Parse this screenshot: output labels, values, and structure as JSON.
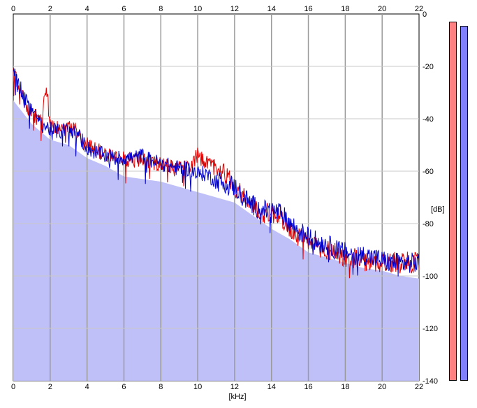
{
  "chart_data": {
    "type": "area",
    "title": "",
    "xlabel": "[kHz]",
    "ylabel": "[dB]",
    "xlim": [
      0,
      22
    ],
    "ylim": [
      -140,
      0
    ],
    "xticks": [
      "0",
      "2",
      "4",
      "6",
      "8",
      "10",
      "12",
      "14",
      "16",
      "18",
      "20",
      "22"
    ],
    "yticks": [
      "0",
      "-20",
      "-40",
      "-60",
      "-80",
      "-100",
      "-120",
      "-140"
    ],
    "grid": true,
    "series": [
      {
        "color": "#e00000",
        "x": [
          0,
          0.5,
          1,
          1.5,
          1.8,
          2,
          2.5,
          3,
          3.5,
          4,
          4.5,
          5,
          5.5,
          6,
          6.5,
          7,
          7.5,
          8,
          8.5,
          9,
          9.5,
          10,
          10.5,
          11,
          11.5,
          12,
          12.5,
          13,
          13.5,
          14,
          14.5,
          15,
          15.5,
          16,
          16.5,
          17,
          17.5,
          18,
          18.5,
          19,
          19.5,
          20,
          20.5,
          21,
          21.5,
          22
        ],
        "values": [
          -22,
          -32,
          -38,
          -41,
          -28,
          -42,
          -44,
          -43,
          -45,
          -50,
          -52,
          -53,
          -55,
          -55,
          -56,
          -55,
          -57,
          -57,
          -58,
          -58,
          -59,
          -54,
          -57,
          -58,
          -61,
          -66,
          -69,
          -73,
          -76,
          -76,
          -77,
          -82,
          -85,
          -87,
          -89,
          -90,
          -91,
          -93,
          -93,
          -94,
          -95,
          -95,
          -95,
          -94,
          -95,
          -95
        ]
      },
      {
        "color": "#0000cc",
        "x": [
          0,
          0.5,
          1,
          1.5,
          2,
          2.5,
          3,
          3.5,
          4,
          4.5,
          5,
          5.5,
          6,
          6.5,
          7,
          7.5,
          8,
          8.5,
          9,
          9.5,
          10,
          10.5,
          11,
          11.5,
          12,
          12.5,
          13,
          13.5,
          14,
          14.5,
          15,
          15.5,
          16,
          16.5,
          17,
          17.5,
          18,
          18.5,
          19,
          19.5,
          20,
          20.5,
          21,
          21.5,
          22
        ],
        "values": [
          -22,
          -30,
          -37,
          -42,
          -44,
          -45,
          -44,
          -46,
          -51,
          -53,
          -54,
          -55,
          -55,
          -55,
          -54,
          -56,
          -57,
          -58,
          -59,
          -59,
          -61,
          -61,
          -64,
          -64,
          -66,
          -70,
          -73,
          -75,
          -75,
          -76,
          -80,
          -83,
          -85,
          -87,
          -88,
          -90,
          -91,
          -92,
          -92,
          -93,
          -94,
          -95,
          -95,
          -95,
          -95
        ]
      },
      {
        "color": "#c0c0f8",
        "fill": true,
        "x": [
          0,
          1,
          2,
          3,
          4,
          5,
          6,
          7,
          8,
          9,
          10,
          11,
          12,
          13,
          14,
          15,
          16,
          17,
          18,
          19,
          20,
          21,
          22
        ],
        "values": [
          -33,
          -42,
          -48,
          -50,
          -55,
          -58,
          -62,
          -63,
          -64,
          -66,
          -68,
          -70,
          -72,
          -77,
          -82,
          -86,
          -91,
          -93,
          -95,
          -97,
          -98,
          -100,
          -101
        ]
      }
    ],
    "meters": [
      {
        "color": "#ff8080",
        "level": 0.99
      },
      {
        "color": "#8080ff",
        "level": 0.99
      }
    ]
  }
}
